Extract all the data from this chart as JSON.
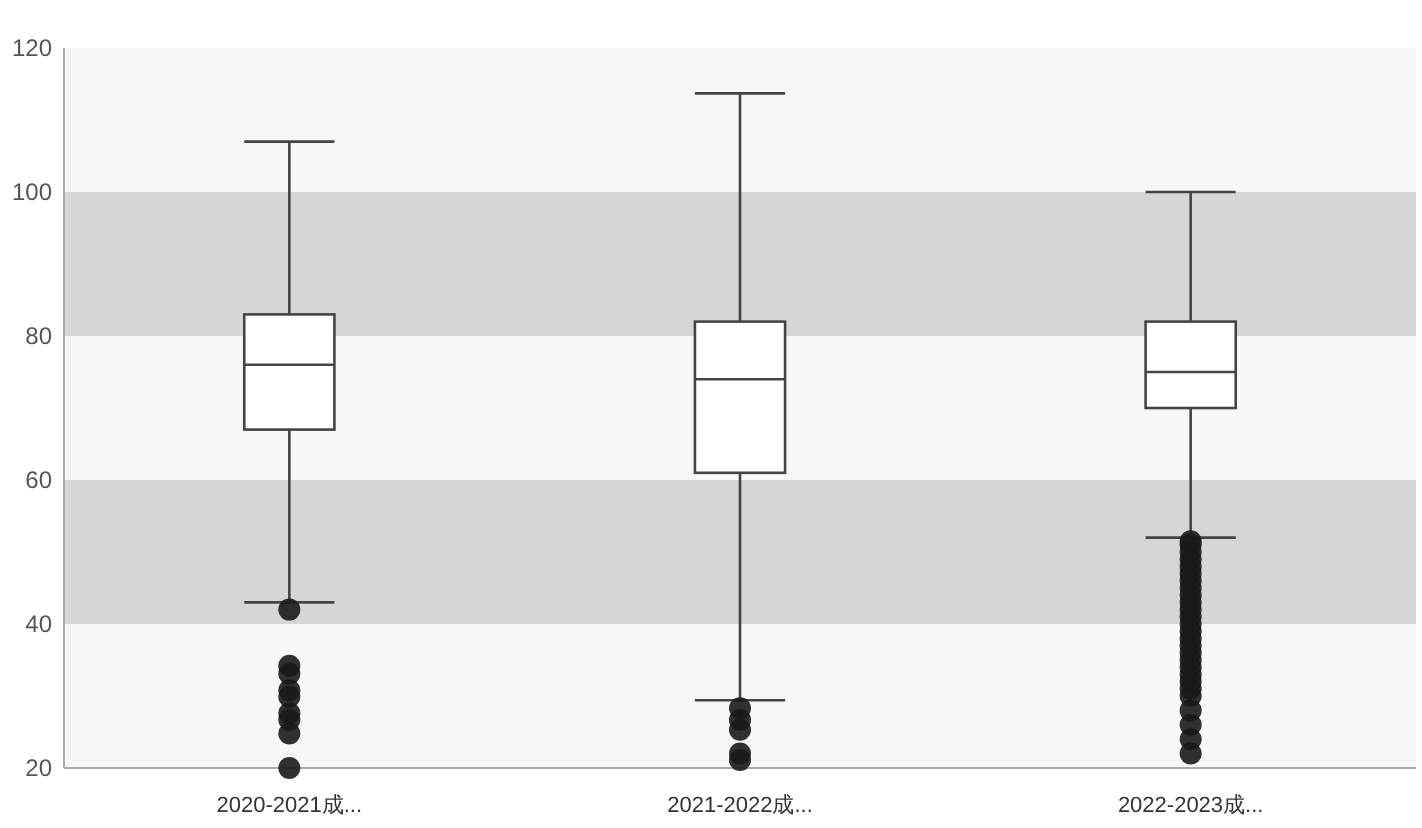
{
  "chart_data": {
    "type": "box",
    "categories": [
      "2020-2021成...",
      "2021-2022成...",
      "2022-2023成..."
    ],
    "boxes": [
      {
        "low": 43,
        "q1": 67,
        "median": 76,
        "q3": 83,
        "high": 107,
        "outliers": [
          42,
          34.2,
          33.1,
          30.8,
          29.9,
          27.6,
          26.7,
          24.8,
          20
        ]
      },
      {
        "low": 29.4,
        "q1": 61,
        "median": 74,
        "q3": 82,
        "high": 113.7,
        "outliers": [
          28.3,
          26.7,
          25.3,
          22,
          21.1
        ]
      },
      {
        "low": 52,
        "q1": 70,
        "median": 75,
        "q3": 82,
        "high": 100,
        "outliers": [
          51.5,
          51,
          50,
          49,
          48,
          47,
          46,
          45,
          44,
          43,
          42,
          41,
          40,
          39,
          38,
          37,
          36,
          35,
          34,
          33,
          32,
          31,
          30,
          28,
          26,
          24,
          22
        ]
      }
    ],
    "ylim": [
      20,
      120
    ],
    "yticks": [
      20,
      40,
      60,
      80,
      100,
      120
    ],
    "bands": [
      {
        "axis": "y",
        "from": 20,
        "to": 40,
        "color": "#f7f7f7"
      },
      {
        "axis": "y",
        "from": 40,
        "to": 60,
        "color": "#d6d6d6"
      },
      {
        "axis": "y",
        "from": 60,
        "to": 80,
        "color": "#f7f7f7"
      },
      {
        "axis": "y",
        "from": 80,
        "to": 100,
        "color": "#d6d6d6"
      },
      {
        "axis": "y",
        "from": 100,
        "to": 120,
        "color": "#f7f7f7"
      }
    ]
  }
}
